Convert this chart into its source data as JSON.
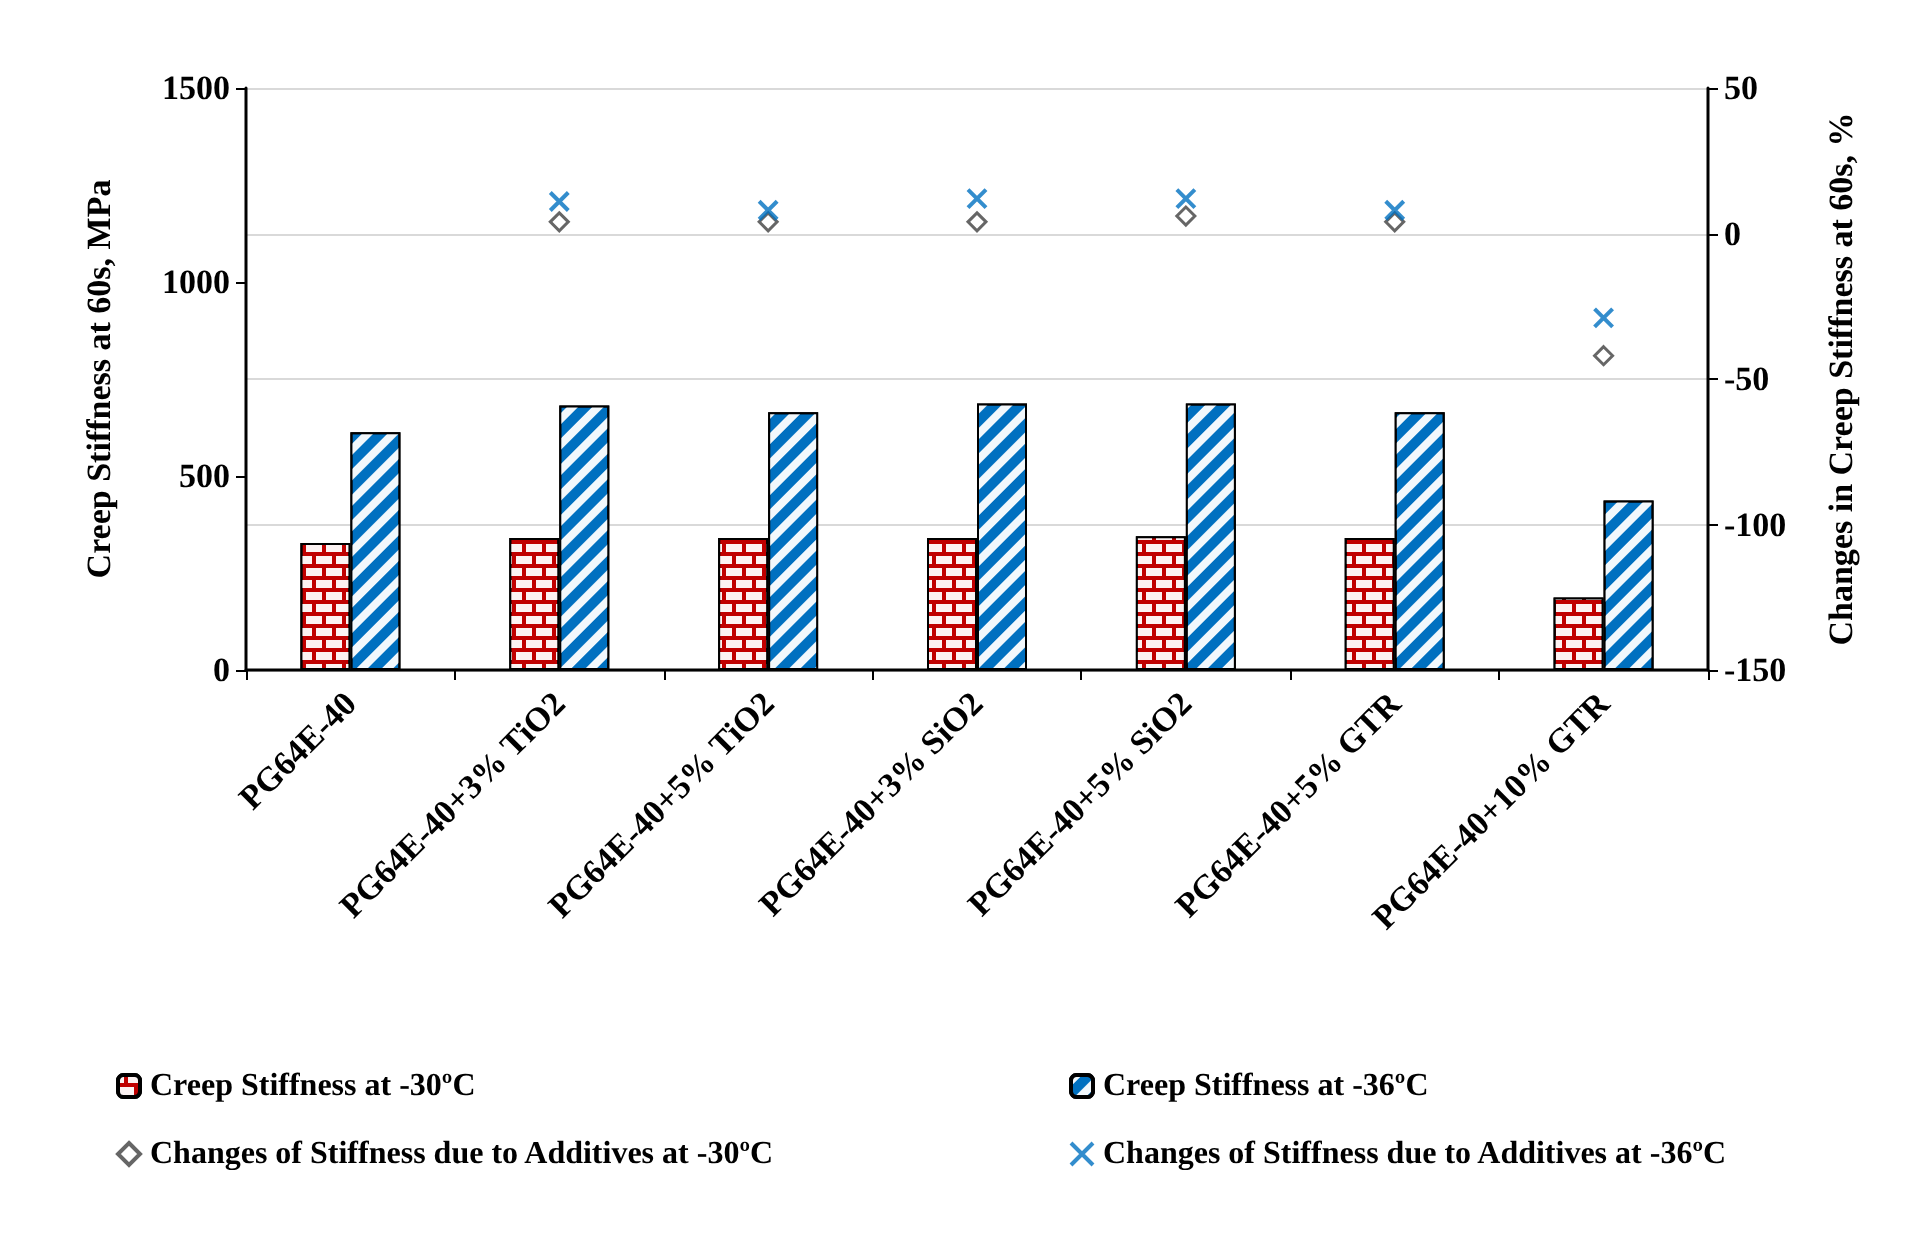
{
  "chart_data": {
    "type": "bar",
    "ylabel": "Creep Stiffness at 60s, MPa",
    "y2label": "Changes in Creep Stiffness at 60s, %",
    "categories": [
      "PG64E-40",
      "PG64E-40+3% TiO2",
      "PG64E-40+5% TiO2",
      "PG64E-40+3% SiO2",
      "PG64E-40+5% SiO2",
      "PG64E-40+5% GTR",
      "PG64E-40+10% GTR"
    ],
    "series": [
      {
        "name": "Creep Stiffness at -30ºC",
        "color": "#c00000",
        "values": [
          327,
          340,
          340,
          340,
          345,
          340,
          187
        ]
      },
      {
        "name": "Creep Stiffness at -36ºC",
        "color": "#0070c0",
        "values": [
          613,
          682,
          664,
          687,
          687,
          664,
          437
        ]
      },
      {
        "name": "Changes of Stiffness due to Additives at -30ºC",
        "type": "scatter",
        "axis": "y2",
        "marker": "diamond",
        "color": "#404040",
        "values": [
          null,
          4,
          4,
          4,
          6,
          4,
          -42
        ]
      },
      {
        "name": "Changes of Stiffness due to Additives at -36ºC",
        "type": "scatter",
        "axis": "y2",
        "marker": "cross",
        "color": "#0070c0",
        "values": [
          null,
          11,
          8,
          12,
          12,
          8,
          -29
        ]
      }
    ],
    "ylim": [
      0,
      1500
    ],
    "yticks": [
      0,
      500,
      1000,
      1500
    ],
    "y2lim": [
      -150,
      50
    ],
    "y2ticks": [
      -150,
      -100,
      -50,
      0,
      50
    ],
    "grid": "y2",
    "legend": "bottom"
  }
}
